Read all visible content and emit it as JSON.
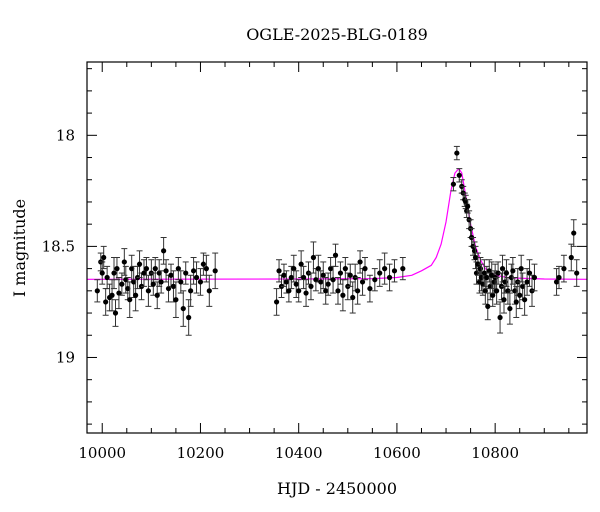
{
  "chart_data": {
    "type": "scatter",
    "title": "OGLE-2025-BLG-0189",
    "xlabel": "HJD - 2450000",
    "ylabel": "I magnitude",
    "xlim": [
      9969,
      10987
    ],
    "ylim": [
      17.67,
      19.34
    ],
    "y_inverted": true,
    "x_major_ticks": [
      10000,
      10200,
      10400,
      10600,
      10800
    ],
    "x_tick_labels": [
      "10000",
      "10200",
      "10400",
      "10600",
      "10800"
    ],
    "x_minor_step": 50,
    "y_major_ticks": [
      18,
      18.5,
      19
    ],
    "y_tick_labels": [
      "18",
      "18.5",
      "19"
    ],
    "y_minor_step": 0.1,
    "grid": false,
    "colors": {
      "points": "#000000",
      "model": "#ff00ff"
    },
    "points_columns": [
      "hjd",
      "mag",
      "err"
    ],
    "points": [
      [
        9990,
        18.7,
        0.05
      ],
      [
        9997,
        18.57,
        0.04
      ],
      [
        10000,
        18.62,
        0.05
      ],
      [
        10003,
        18.55,
        0.05
      ],
      [
        10007,
        18.75,
        0.06
      ],
      [
        10010,
        18.64,
        0.05
      ],
      [
        10015,
        18.73,
        0.06
      ],
      [
        10020,
        18.72,
        0.07
      ],
      [
        10024,
        18.62,
        0.07
      ],
      [
        10027,
        18.8,
        0.06
      ],
      [
        10030,
        18.6,
        0.05
      ],
      [
        10034,
        18.71,
        0.07
      ],
      [
        10040,
        18.67,
        0.05
      ],
      [
        10045,
        18.57,
        0.06
      ],
      [
        10048,
        18.65,
        0.06
      ],
      [
        10052,
        18.69,
        0.05
      ],
      [
        10056,
        18.74,
        0.08
      ],
      [
        10060,
        18.6,
        0.06
      ],
      [
        10064,
        18.66,
        0.07
      ],
      [
        10068,
        18.72,
        0.07
      ],
      [
        10072,
        18.64,
        0.05
      ],
      [
        10076,
        18.58,
        0.06
      ],
      [
        10080,
        18.68,
        0.06
      ],
      [
        10085,
        18.62,
        0.06
      ],
      [
        10090,
        18.6,
        0.05
      ],
      [
        10094,
        18.7,
        0.07
      ],
      [
        10100,
        18.62,
        0.06
      ],
      [
        10104,
        18.67,
        0.05
      ],
      [
        10108,
        18.6,
        0.05
      ],
      [
        10112,
        18.72,
        0.06
      ],
      [
        10116,
        18.62,
        0.06
      ],
      [
        10120,
        18.66,
        0.05
      ],
      [
        10125,
        18.52,
        0.06
      ],
      [
        10130,
        18.61,
        0.05
      ],
      [
        10135,
        18.69,
        0.06
      ],
      [
        10140,
        18.63,
        0.05
      ],
      [
        10145,
        18.68,
        0.07
      ],
      [
        10150,
        18.74,
        0.08
      ],
      [
        10155,
        18.6,
        0.05
      ],
      [
        10160,
        18.66,
        0.05
      ],
      [
        10165,
        18.78,
        0.08
      ],
      [
        10170,
        18.62,
        0.05
      ],
      [
        10176,
        18.82,
        0.08
      ],
      [
        10180,
        18.7,
        0.07
      ],
      [
        10186,
        18.61,
        0.06
      ],
      [
        10192,
        18.64,
        0.07
      ],
      [
        10200,
        18.66,
        0.06
      ],
      [
        10206,
        18.58,
        0.05
      ],
      [
        10212,
        18.6,
        0.06
      ],
      [
        10218,
        18.7,
        0.07
      ],
      [
        10230,
        18.61,
        0.08
      ],
      [
        10355,
        18.75,
        0.06
      ],
      [
        10360,
        18.61,
        0.05
      ],
      [
        10365,
        18.68,
        0.05
      ],
      [
        10370,
        18.63,
        0.05
      ],
      [
        10375,
        18.66,
        0.05
      ],
      [
        10380,
        18.7,
        0.05
      ],
      [
        10385,
        18.64,
        0.05
      ],
      [
        10390,
        18.6,
        0.06
      ],
      [
        10395,
        18.67,
        0.06
      ],
      [
        10400,
        18.7,
        0.05
      ],
      [
        10405,
        18.58,
        0.06
      ],
      [
        10410,
        18.64,
        0.05
      ],
      [
        10415,
        18.71,
        0.06
      ],
      [
        10420,
        18.62,
        0.05
      ],
      [
        10425,
        18.68,
        0.06
      ],
      [
        10430,
        18.55,
        0.07
      ],
      [
        10435,
        18.65,
        0.05
      ],
      [
        10440,
        18.6,
        0.06
      ],
      [
        10445,
        18.66,
        0.05
      ],
      [
        10450,
        18.63,
        0.06
      ],
      [
        10455,
        18.7,
        0.06
      ],
      [
        10460,
        18.67,
        0.05
      ],
      [
        10465,
        18.6,
        0.05
      ],
      [
        10470,
        18.65,
        0.06
      ],
      [
        10475,
        18.54,
        0.05
      ],
      [
        10480,
        18.7,
        0.06
      ],
      [
        10485,
        18.62,
        0.05
      ],
      [
        10490,
        18.72,
        0.07
      ],
      [
        10495,
        18.6,
        0.05
      ],
      [
        10500,
        18.68,
        0.06
      ],
      [
        10505,
        18.63,
        0.05
      ],
      [
        10510,
        18.73,
        0.07
      ],
      [
        10515,
        18.64,
        0.06
      ],
      [
        10520,
        18.7,
        0.06
      ],
      [
        10525,
        18.57,
        0.05
      ],
      [
        10530,
        18.66,
        0.06
      ],
      [
        10535,
        18.6,
        0.05
      ],
      [
        10545,
        18.69,
        0.06
      ],
      [
        10555,
        18.65,
        0.05
      ],
      [
        10565,
        18.62,
        0.06
      ],
      [
        10575,
        18.6,
        0.07
      ],
      [
        10585,
        18.64,
        0.06
      ],
      [
        10595,
        18.61,
        0.05
      ],
      [
        10612,
        18.6,
        0.05
      ],
      [
        10715,
        18.22,
        0.03
      ],
      [
        10722,
        18.08,
        0.03
      ],
      [
        10727,
        18.18,
        0.03
      ],
      [
        10732,
        18.23,
        0.03
      ],
      [
        10735,
        18.26,
        0.03
      ],
      [
        10738,
        18.29,
        0.03
      ],
      [
        10740,
        18.3,
        0.03
      ],
      [
        10742,
        18.34,
        0.03
      ],
      [
        10744,
        18.32,
        0.03
      ],
      [
        10747,
        18.38,
        0.04
      ],
      [
        10750,
        18.42,
        0.04
      ],
      [
        10752,
        18.46,
        0.04
      ],
      [
        10755,
        18.5,
        0.04
      ],
      [
        10758,
        18.52,
        0.04
      ],
      [
        10760,
        18.55,
        0.05
      ],
      [
        10762,
        18.62,
        0.05
      ],
      [
        10765,
        18.58,
        0.05
      ],
      [
        10768,
        18.66,
        0.05
      ],
      [
        10770,
        18.6,
        0.05
      ],
      [
        10772,
        18.64,
        0.06
      ],
      [
        10775,
        18.67,
        0.05
      ],
      [
        10778,
        18.62,
        0.06
      ],
      [
        10780,
        18.7,
        0.06
      ],
      [
        10783,
        18.64,
        0.05
      ],
      [
        10785,
        18.77,
        0.06
      ],
      [
        10788,
        18.61,
        0.05
      ],
      [
        10790,
        18.68,
        0.06
      ],
      [
        10793,
        18.63,
        0.06
      ],
      [
        10795,
        18.72,
        0.05
      ],
      [
        10798,
        18.66,
        0.05
      ],
      [
        10800,
        18.64,
        0.06
      ],
      [
        10803,
        18.7,
        0.06
      ],
      [
        10806,
        18.62,
        0.05
      ],
      [
        10810,
        18.82,
        0.07
      ],
      [
        10813,
        18.68,
        0.06
      ],
      [
        10815,
        18.6,
        0.06
      ],
      [
        10818,
        18.74,
        0.06
      ],
      [
        10820,
        18.66,
        0.05
      ],
      [
        10823,
        18.62,
        0.06
      ],
      [
        10826,
        18.7,
        0.06
      ],
      [
        10830,
        18.78,
        0.07
      ],
      [
        10833,
        18.64,
        0.06
      ],
      [
        10836,
        18.61,
        0.06
      ],
      [
        10840,
        18.7,
        0.06
      ],
      [
        10843,
        18.75,
        0.07
      ],
      [
        10846,
        18.66,
        0.06
      ],
      [
        10850,
        18.72,
        0.06
      ],
      [
        10853,
        18.6,
        0.06
      ],
      [
        10856,
        18.68,
        0.06
      ],
      [
        10860,
        18.74,
        0.07
      ],
      [
        10865,
        18.66,
        0.06
      ],
      [
        10870,
        18.62,
        0.06
      ],
      [
        10875,
        18.7,
        0.07
      ],
      [
        10880,
        18.64,
        0.06
      ],
      [
        10925,
        18.66,
        0.06
      ],
      [
        10930,
        18.64,
        0.05
      ],
      [
        10940,
        18.6,
        0.06
      ],
      [
        10955,
        18.55,
        0.06
      ],
      [
        10960,
        18.44,
        0.06
      ],
      [
        10966,
        18.62,
        0.06
      ]
    ],
    "model": [
      [
        9969,
        18.648
      ],
      [
        10400,
        18.647
      ],
      [
        10550,
        18.645
      ],
      [
        10600,
        18.64
      ],
      [
        10630,
        18.63
      ],
      [
        10650,
        18.61
      ],
      [
        10670,
        18.585
      ],
      [
        10680,
        18.55
      ],
      [
        10690,
        18.49
      ],
      [
        10700,
        18.39
      ],
      [
        10710,
        18.25
      ],
      [
        10718,
        18.17
      ],
      [
        10726,
        18.15
      ],
      [
        10732,
        18.17
      ],
      [
        10740,
        18.27
      ],
      [
        10750,
        18.4
      ],
      [
        10760,
        18.5
      ],
      [
        10770,
        18.56
      ],
      [
        10780,
        18.6
      ],
      [
        10800,
        18.63
      ],
      [
        10830,
        18.642
      ],
      [
        10900,
        18.647
      ],
      [
        10987,
        18.648
      ]
    ]
  }
}
